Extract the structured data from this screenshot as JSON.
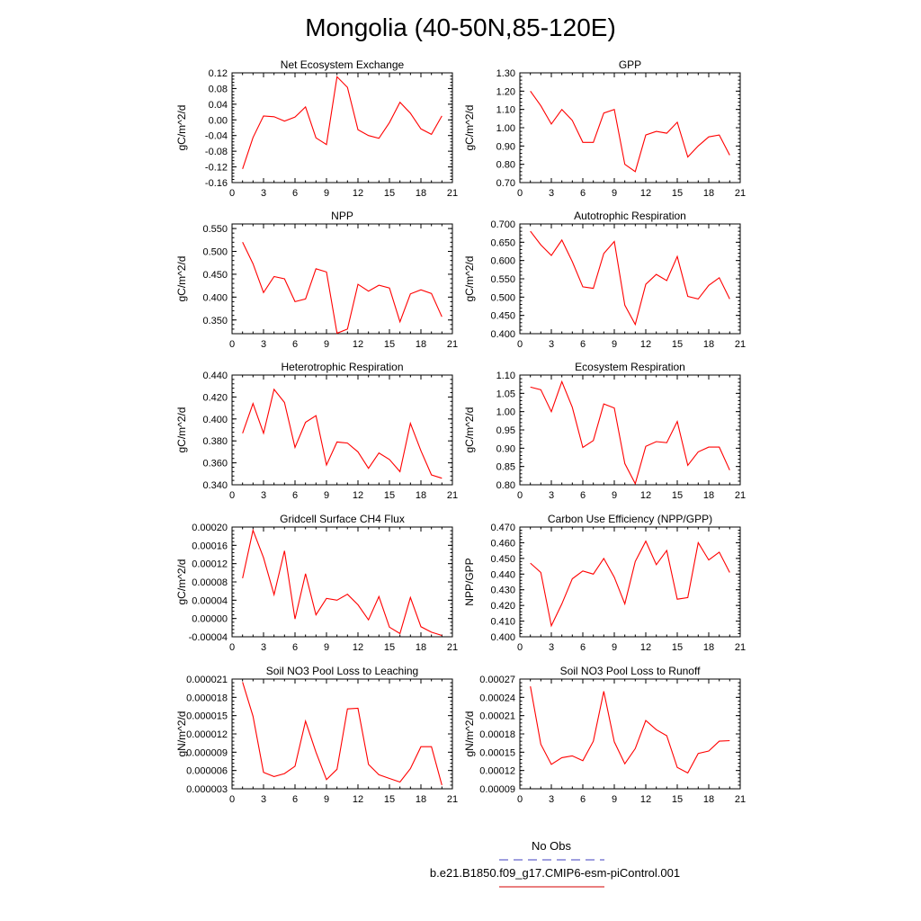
{
  "figure": {
    "title": "Mongolia (40-50N,85-120E)",
    "legend": [
      {
        "label": "No Obs",
        "color": "#6666cc",
        "style": "dashed"
      },
      {
        "label": "b.e21.B1850.f09_g17.CMIP6-esm-piControl.001",
        "color": "#dd3333",
        "style": "solid"
      }
    ]
  },
  "chart_data": [
    {
      "type": "line",
      "title": "Net Ecosystem Exchange",
      "ylabel": "gC/m^2/d",
      "xlim": [
        0,
        21
      ],
      "xticks": [
        "0",
        "3",
        "6",
        "9",
        "12",
        "15",
        "18",
        "21"
      ],
      "ylim": [
        -0.16,
        0.12
      ],
      "yticks": [
        "-0.16",
        "-0.12",
        "-0.08",
        "-0.04",
        "0.00",
        "0.04",
        "0.08",
        "0.12"
      ],
      "series": [
        {
          "color": "#ff0000",
          "x": [
            1,
            2,
            3,
            4,
            5,
            6,
            7,
            8,
            9,
            10,
            11,
            12,
            13,
            14,
            15,
            16,
            17,
            18,
            19,
            20
          ],
          "y": [
            -0.125,
            -0.045,
            0.01,
            0.008,
            -0.003,
            0.007,
            0.033,
            -0.046,
            -0.063,
            0.11,
            0.083,
            -0.025,
            -0.04,
            -0.047,
            -0.007,
            0.045,
            0.017,
            -0.023,
            -0.037,
            0.01
          ]
        }
      ]
    },
    {
      "type": "line",
      "title": "GPP",
      "ylabel": "gC/m^2/d",
      "xlim": [
        0,
        21
      ],
      "xticks": [
        "0",
        "3",
        "6",
        "9",
        "12",
        "15",
        "18",
        "21"
      ],
      "ylim": [
        0.7,
        1.3
      ],
      "yticks": [
        "0.70",
        "0.80",
        "0.90",
        "1.00",
        "1.10",
        "1.20",
        "1.30"
      ],
      "series": [
        {
          "color": "#ff0000",
          "x": [
            1,
            2,
            3,
            4,
            5,
            6,
            7,
            8,
            9,
            10,
            11,
            12,
            13,
            14,
            15,
            16,
            17,
            18,
            19,
            20
          ],
          "y": [
            1.2,
            1.12,
            1.02,
            1.1,
            1.04,
            0.92,
            0.92,
            1.08,
            1.1,
            0.8,
            0.76,
            0.96,
            0.98,
            0.97,
            1.03,
            0.84,
            0.9,
            0.95,
            0.96,
            0.85
          ]
        }
      ]
    },
    {
      "type": "line",
      "title": "NPP",
      "ylabel": "gC/m^2/d",
      "xlim": [
        0,
        21
      ],
      "xticks": [
        "0",
        "3",
        "6",
        "9",
        "12",
        "15",
        "18",
        "21"
      ],
      "ylim": [
        0.32,
        0.56
      ],
      "yticks": [
        "0.350",
        "0.400",
        "0.450",
        "0.500",
        "0.550"
      ],
      "series": [
        {
          "color": "#ff0000",
          "x": [
            1,
            2,
            3,
            4,
            5,
            6,
            7,
            8,
            9,
            10,
            11,
            12,
            13,
            14,
            15,
            16,
            17,
            18,
            19,
            20
          ],
          "y": [
            0.52,
            0.473,
            0.41,
            0.445,
            0.44,
            0.39,
            0.396,
            0.462,
            0.455,
            0.321,
            0.33,
            0.428,
            0.413,
            0.426,
            0.42,
            0.346,
            0.407,
            0.416,
            0.408,
            0.357
          ]
        }
      ]
    },
    {
      "type": "line",
      "title": "Autotrophic Respiration",
      "ylabel": "gC/m^2/d",
      "xlim": [
        0,
        21
      ],
      "xticks": [
        "0",
        "3",
        "6",
        "9",
        "12",
        "15",
        "18",
        "21"
      ],
      "ylim": [
        0.4,
        0.7
      ],
      "yticks": [
        "0.400",
        "0.450",
        "0.500",
        "0.550",
        "0.600",
        "0.650",
        "0.700"
      ],
      "series": [
        {
          "color": "#ff0000",
          "x": [
            1,
            2,
            3,
            4,
            5,
            6,
            7,
            8,
            9,
            10,
            11,
            12,
            13,
            14,
            15,
            16,
            17,
            18,
            19,
            20
          ],
          "y": [
            0.68,
            0.643,
            0.614,
            0.656,
            0.597,
            0.528,
            0.524,
            0.619,
            0.652,
            0.478,
            0.425,
            0.535,
            0.562,
            0.545,
            0.611,
            0.502,
            0.495,
            0.532,
            0.553,
            0.495
          ]
        }
      ]
    },
    {
      "type": "line",
      "title": "Heterotrophic Respiration",
      "ylabel": "gC/m^2/d",
      "xlim": [
        0,
        21
      ],
      "xticks": [
        "0",
        "3",
        "6",
        "9",
        "12",
        "15",
        "18",
        "21"
      ],
      "ylim": [
        0.34,
        0.44
      ],
      "yticks": [
        "0.340",
        "0.360",
        "0.380",
        "0.400",
        "0.420",
        "0.440"
      ],
      "series": [
        {
          "color": "#ff0000",
          "x": [
            1,
            2,
            3,
            4,
            5,
            6,
            7,
            8,
            9,
            10,
            11,
            12,
            13,
            14,
            15,
            16,
            17,
            18,
            19,
            20
          ],
          "y": [
            0.387,
            0.414,
            0.387,
            0.427,
            0.415,
            0.374,
            0.397,
            0.403,
            0.358,
            0.379,
            0.378,
            0.37,
            0.355,
            0.369,
            0.363,
            0.352,
            0.396,
            0.371,
            0.349,
            0.346
          ]
        }
      ]
    },
    {
      "type": "line",
      "title": "Ecosystem Respiration",
      "ylabel": "gC/m^2/d",
      "xlim": [
        0,
        21
      ],
      "xticks": [
        "0",
        "3",
        "6",
        "9",
        "12",
        "15",
        "18",
        "21"
      ],
      "ylim": [
        0.8,
        1.1
      ],
      "yticks": [
        "0.80",
        "0.85",
        "0.90",
        "0.95",
        "1.00",
        "1.05",
        "1.10"
      ],
      "series": [
        {
          "color": "#ff0000",
          "x": [
            1,
            2,
            3,
            4,
            5,
            6,
            7,
            8,
            9,
            10,
            11,
            12,
            13,
            14,
            15,
            16,
            17,
            18,
            19,
            20
          ],
          "y": [
            1.067,
            1.06,
            1.0,
            1.082,
            1.012,
            0.902,
            0.921,
            1.021,
            1.01,
            0.858,
            0.803,
            0.905,
            0.918,
            0.915,
            0.973,
            0.853,
            0.89,
            0.903,
            0.903,
            0.84
          ]
        }
      ]
    },
    {
      "type": "line",
      "title": "Gridcell Surface CH4 Flux",
      "ylabel": "gC/m^2/d",
      "xlim": [
        0,
        21
      ],
      "xticks": [
        "0",
        "3",
        "6",
        "9",
        "12",
        "15",
        "18",
        "21"
      ],
      "ylim": [
        -4e-05,
        0.0002
      ],
      "yticks": [
        "-0.00004",
        "0.00000",
        "0.00004",
        "0.00008",
        "0.00012",
        "0.00016",
        "0.00020"
      ],
      "series": [
        {
          "color": "#ff0000",
          "x": [
            1,
            2,
            3,
            4,
            5,
            6,
            7,
            8,
            9,
            10,
            11,
            12,
            13,
            14,
            15,
            16,
            17,
            18,
            19,
            20
          ],
          "y": [
            8.8e-05,
            0.000193,
            0.000133,
            5.2e-05,
            0.000148,
            -1e-06,
            9.8e-05,
            8e-06,
            4.4e-05,
            4e-05,
            5.3e-05,
            3e-05,
            -3e-06,
            4.8e-05,
            -1.9e-05,
            -3.3e-05,
            4.6e-05,
            -1.8e-05,
            -3e-05,
            -3.7e-05
          ]
        }
      ]
    },
    {
      "type": "line",
      "title": "Carbon Use Efficiency (NPP/GPP)",
      "ylabel": "NPP/GPP",
      "xlim": [
        0,
        21
      ],
      "xticks": [
        "0",
        "3",
        "6",
        "9",
        "12",
        "15",
        "18",
        "21"
      ],
      "ylim": [
        0.4,
        0.47
      ],
      "yticks": [
        "0.400",
        "0.410",
        "0.420",
        "0.430",
        "0.440",
        "0.450",
        "0.460",
        "0.470"
      ],
      "series": [
        {
          "color": "#ff0000",
          "x": [
            1,
            2,
            3,
            4,
            5,
            6,
            7,
            8,
            9,
            10,
            11,
            12,
            13,
            14,
            15,
            16,
            17,
            18,
            19,
            20
          ],
          "y": [
            0.447,
            0.441,
            0.407,
            0.421,
            0.437,
            0.442,
            0.44,
            0.45,
            0.438,
            0.421,
            0.448,
            0.461,
            0.446,
            0.455,
            0.424,
            0.425,
            0.46,
            0.449,
            0.454,
            0.441
          ]
        }
      ]
    },
    {
      "type": "line",
      "title": "Soil NO3 Pool Loss to Leaching",
      "ylabel": "gN/m^2/d",
      "xlim": [
        0,
        21
      ],
      "xticks": [
        "0",
        "3",
        "6",
        "9",
        "12",
        "15",
        "18",
        "21"
      ],
      "ylim": [
        3e-06,
        2.1e-05
      ],
      "yticks": [
        "0.000003",
        "0.000006",
        "0.000009",
        "0.000012",
        "0.000015",
        "0.000018",
        "0.000021"
      ],
      "series": [
        {
          "color": "#ff0000",
          "x": [
            1,
            2,
            3,
            4,
            5,
            6,
            7,
            8,
            9,
            10,
            11,
            12,
            13,
            14,
            15,
            16,
            17,
            18,
            19,
            20
          ],
          "y": [
            2.05e-05,
            1.49e-05,
            5.7e-06,
            5e-06,
            5.5e-06,
            6.7e-06,
            1.41e-05,
            9e-06,
            4.5e-06,
            6.2e-06,
            1.61e-05,
            1.62e-05,
            7e-06,
            5.3e-06,
            4.7e-06,
            4.1e-06,
            6.3e-06,
            9.9e-06,
            9.9e-06,
            3.6e-06
          ]
        }
      ]
    },
    {
      "type": "line",
      "title": "Soil NO3 Pool Loss to Runoff",
      "ylabel": "gN/m^2/d",
      "xlim": [
        0,
        21
      ],
      "xticks": [
        "0",
        "3",
        "6",
        "9",
        "12",
        "15",
        "18",
        "21"
      ],
      "ylim": [
        9e-05,
        0.00027
      ],
      "yticks": [
        "0.00009",
        "0.00012",
        "0.00015",
        "0.00018",
        "0.00021",
        "0.00024",
        "0.00027"
      ],
      "series": [
        {
          "color": "#ff0000",
          "x": [
            1,
            2,
            3,
            4,
            5,
            6,
            7,
            8,
            9,
            10,
            11,
            12,
            13,
            14,
            15,
            16,
            17,
            18,
            19,
            20
          ],
          "y": [
            0.000258,
            0.000163,
            0.00013,
            0.000141,
            0.000144,
            0.000136,
            0.000168,
            0.00025,
            0.000167,
            0.000131,
            0.000156,
            0.000202,
            0.000187,
            0.000177,
            0.000125,
            0.000116,
            0.000148,
            0.000152,
            0.000168,
            0.000169
          ]
        }
      ]
    }
  ]
}
